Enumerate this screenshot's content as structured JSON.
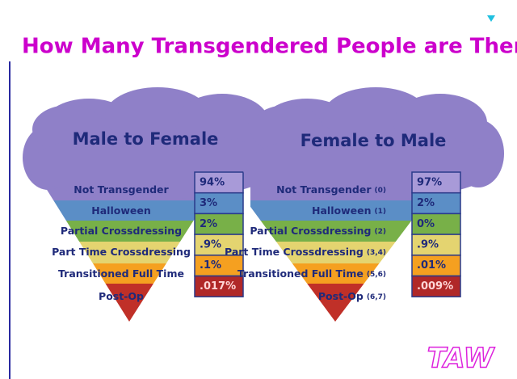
{
  "title": "How Many Transgendered People are There?",
  "panels": [
    {
      "heading": "Male to Female",
      "rows": [
        {
          "label": "Not Transgender",
          "value": "94%"
        },
        {
          "label": "Halloween",
          "value": "3%"
        },
        {
          "label": "Partial Crossdressing",
          "value": "2%"
        },
        {
          "label": "Part Time Crossdressing",
          "value": ".9%"
        },
        {
          "label": "Transitioned Full Time",
          "value": ".1%"
        },
        {
          "label": "Post-Op",
          "value": ".017%"
        }
      ]
    },
    {
      "heading": "Female to Male",
      "rows": [
        {
          "label": "Not Transgender",
          "note": "(0)",
          "value": "97%"
        },
        {
          "label": "Halloween",
          "note": "(1)",
          "value": "2%"
        },
        {
          "label": "Partial Crossdressing",
          "note": "(2)",
          "value": "0%"
        },
        {
          "label": "Part Time Crossdressing",
          "note": "(3,4)",
          "value": ".9%"
        },
        {
          "label": "Transitioned Full Time",
          "note": "(5,6)",
          "value": ".01%"
        },
        {
          "label": "Post-Op",
          "note": "(6,7)",
          "value": ".009%"
        }
      ]
    }
  ],
  "logo": "TAW"
}
